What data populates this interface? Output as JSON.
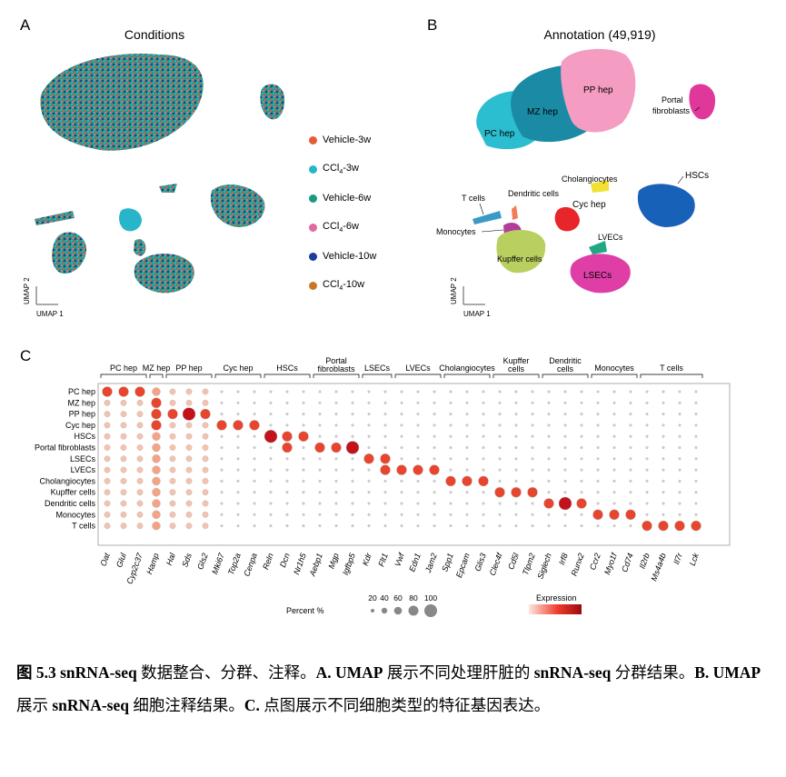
{
  "panels": {
    "a": {
      "letter": "A",
      "title": "Conditions",
      "legend": [
        {
          "label": "Vehicle-3w",
          "color": "#e8593a"
        },
        {
          "label": "CCl4-3w",
          "color": "#27b6c9"
        },
        {
          "label": "Vehicle-6w",
          "color": "#1a9a82"
        },
        {
          "label": "CCl4-6w",
          "color": "#e06a9f"
        },
        {
          "label": "Vehicle-10w",
          "color": "#1d3c9c"
        },
        {
          "label": "CCl4-10w",
          "color": "#c8772a"
        }
      ],
      "axis_y": "UMAP 2",
      "axis_x": "UMAP 1"
    },
    "b": {
      "letter": "B",
      "title": "Annotation (49,919)",
      "clusters": [
        {
          "label": "PP hep",
          "color": "#f49cc1"
        },
        {
          "label": "MZ hep",
          "color": "#1a8aa5"
        },
        {
          "label": "PC hep",
          "color": "#2bbdd0"
        },
        {
          "label": "Portal fibroblasts",
          "color": "#e0389a"
        },
        {
          "label": "Cholangiocytes",
          "color": "#f2e034"
        },
        {
          "label": "HSCs",
          "color": "#1861b8"
        },
        {
          "label": "Cyc hep",
          "color": "#e8252a"
        },
        {
          "label": "T cells",
          "color": "#3a9ac6"
        },
        {
          "label": "Dendritic cells",
          "color": "#f07c58"
        },
        {
          "label": "Monocytes",
          "color": "#b23c9a"
        },
        {
          "label": "Kupffer cells",
          "color": "#b9cf60"
        },
        {
          "label": "LVECs",
          "color": "#21a883"
        },
        {
          "label": "LSECs",
          "color": "#de3ea6"
        }
      ],
      "axis_y": "UMAP 2",
      "axis_x": "UMAP 1"
    },
    "c": {
      "letter": "C",
      "rows": [
        "PC hep",
        "MZ hep",
        "PP hep",
        "Cyc hep",
        "HSCs",
        "Portal fibroblasts",
        "LSECs",
        "LVECs",
        "Cholangiocytes",
        "Kupffer cells",
        "Dendritic cells",
        "Monocytes",
        "T cells"
      ],
      "genes": [
        "Oat",
        "Glul",
        "Cyp2c37",
        "Hamp",
        "Hal",
        "Sds",
        "Gls2",
        "Mki67",
        "Top2a",
        "Cenpa",
        "Reln",
        "Dcn",
        "Nr1h5",
        "Aebp1",
        "Mgp",
        "Igfbp5",
        "Kdr",
        "Flt1",
        "Vwf",
        "Edn1",
        "Jam2",
        "Spp1",
        "Epcam",
        "Glis3",
        "Clec4f",
        "Cd5l",
        "Tlpm2",
        "Siglech",
        "Irf8",
        "Runx2",
        "Ccr2",
        "Myo1f",
        "Cd74",
        "Il2rb",
        "Ms4a4b",
        "Il7r",
        "Lck"
      ],
      "groups": [
        "PC hep",
        "MZ hep",
        "PP hep",
        "Cyc hep",
        "HSCs",
        "Portal fibroblasts",
        "LSECs",
        "LVECs",
        "Cholangiocytes",
        "Kupffer cells",
        "Dendritic cells",
        "Monocytes",
        "T cells"
      ],
      "size_legend_title": "Percent %",
      "size_legend_values": [
        "20",
        "40",
        "60",
        "80",
        "100"
      ],
      "color_legend_title": "Expression"
    }
  },
  "caption": {
    "fig": "图 5.3",
    "title": "snRNA-seq",
    "p1": " 数据整合、分群、注释。",
    "a_lbl": "A. UMAP",
    "a_t": " 展示不同处理肝脏的 ",
    "a_b": "snRNA-seq",
    "a_t2": " 分群结果。",
    "b_lbl": "B. UMAP",
    "b_t": " 展示 ",
    "b_b": "snRNA-seq",
    "b_t2": " 细胞注释结果。",
    "c_lbl": "C.",
    "c_t": " 点图展示不同细胞类型的特征基因表达。"
  }
}
